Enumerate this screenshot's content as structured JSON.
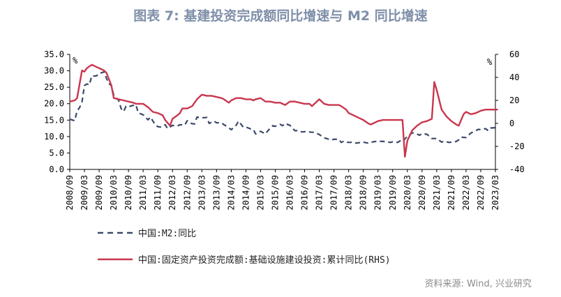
{
  "title": "图表 7:  基建投资完成额同比增速与 M2 同比增速",
  "source": "资料来源:  Wind, 兴业研究",
  "colors": {
    "m2": "#3b4a6b",
    "infra": "#c9364e",
    "title": "#7f8fa9",
    "axis": "#000000"
  },
  "chart_data": {
    "type": "line",
    "x_ticks": [
      "2008/09",
      "2009/03",
      "2009/09",
      "2010/03",
      "2010/09",
      "2011/03",
      "2011/09",
      "2012/03",
      "2012/09",
      "2013/03",
      "2013/09",
      "2014/03",
      "2014/09",
      "2015/03",
      "2015/09",
      "2016/03",
      "2016/09",
      "2017/03",
      "2017/09",
      "2018/03",
      "2018/09",
      "2019/03",
      "2019/09",
      "2020/03",
      "2020/09",
      "2021/03",
      "2021/09",
      "2022/03",
      "2022/09",
      "2023/03"
    ],
    "y_left": {
      "ticks": [
        "35.0",
        "30.0",
        "25.0",
        "20.0",
        "15.0",
        "10.0",
        "5.0",
        "0.0"
      ],
      "range": [
        0,
        35
      ],
      "unit": "%"
    },
    "y_right": {
      "ticks": [
        "60",
        "40",
        "20",
        "0",
        "-20",
        "-40"
      ],
      "range": [
        -40,
        60
      ],
      "unit": "%"
    },
    "series": [
      {
        "name": "中国:M2:同比",
        "axis": "left",
        "style": "dashed",
        "color": "#3b4a6b",
        "points": [
          [
            "2008/09",
            15.3
          ],
          [
            "2008/11",
            14.8
          ],
          [
            "2008/12",
            17.8
          ],
          [
            "2009/01",
            18.8
          ],
          [
            "2009/02",
            20.5
          ],
          [
            "2009/03",
            25.5
          ],
          [
            "2009/04",
            26.0
          ],
          [
            "2009/05",
            25.7
          ],
          [
            "2009/06",
            28.5
          ],
          [
            "2009/07",
            28.4
          ],
          [
            "2009/08",
            28.5
          ],
          [
            "2009/09",
            29.3
          ],
          [
            "2009/10",
            29.4
          ],
          [
            "2009/11",
            29.7
          ],
          [
            "2009/12",
            27.7
          ],
          [
            "2010/01",
            26.1
          ],
          [
            "2010/02",
            25.5
          ],
          [
            "2010/03",
            22.5
          ],
          [
            "2010/05",
            21.0
          ],
          [
            "2010/06",
            18.5
          ],
          [
            "2010/07",
            17.6
          ],
          [
            "2010/08",
            19.2
          ],
          [
            "2010/09",
            19.0
          ],
          [
            "2010/10",
            19.3
          ],
          [
            "2010/12",
            19.7
          ],
          [
            "2011/01",
            17.2
          ],
          [
            "2011/03",
            16.6
          ],
          [
            "2011/05",
            15.1
          ],
          [
            "2011/06",
            15.9
          ],
          [
            "2011/08",
            13.5
          ],
          [
            "2011/09",
            13.0
          ],
          [
            "2011/10",
            12.9
          ],
          [
            "2011/12",
            13.6
          ],
          [
            "2012/01",
            12.4
          ],
          [
            "2012/03",
            13.4
          ],
          [
            "2012/05",
            13.2
          ],
          [
            "2012/06",
            13.6
          ],
          [
            "2012/08",
            13.5
          ],
          [
            "2012/09",
            14.8
          ],
          [
            "2012/10",
            14.1
          ],
          [
            "2012/12",
            13.8
          ],
          [
            "2013/01",
            15.9
          ],
          [
            "2013/03",
            15.7
          ],
          [
            "2013/05",
            15.8
          ],
          [
            "2013/06",
            14.0
          ],
          [
            "2013/08",
            14.7
          ],
          [
            "2013/09",
            14.2
          ],
          [
            "2013/11",
            14.2
          ],
          [
            "2013/12",
            13.6
          ],
          [
            "2014/01",
            13.2
          ],
          [
            "2014/03",
            12.1
          ],
          [
            "2014/05",
            13.4
          ],
          [
            "2014/06",
            14.7
          ],
          [
            "2014/08",
            12.8
          ],
          [
            "2014/09",
            12.9
          ],
          [
            "2014/11",
            12.3
          ],
          [
            "2014/12",
            12.2
          ],
          [
            "2015/01",
            10.8
          ],
          [
            "2015/03",
            11.6
          ],
          [
            "2015/05",
            10.8
          ],
          [
            "2015/06",
            11.8
          ],
          [
            "2015/08",
            13.3
          ],
          [
            "2015/09",
            13.1
          ],
          [
            "2015/11",
            13.7
          ],
          [
            "2015/12",
            13.3
          ],
          [
            "2016/01",
            14.0
          ],
          [
            "2016/03",
            13.4
          ],
          [
            "2016/05",
            11.8
          ],
          [
            "2016/06",
            11.8
          ],
          [
            "2016/08",
            11.4
          ],
          [
            "2016/09",
            11.5
          ],
          [
            "2016/11",
            11.4
          ],
          [
            "2016/12",
            11.3
          ],
          [
            "2017/01",
            11.3
          ],
          [
            "2017/03",
            10.6
          ],
          [
            "2017/05",
            9.6
          ],
          [
            "2017/06",
            9.4
          ],
          [
            "2017/08",
            8.9
          ],
          [
            "2017/09",
            9.2
          ],
          [
            "2017/11",
            9.1
          ],
          [
            "2017/12",
            8.2
          ],
          [
            "2018/01",
            8.6
          ],
          [
            "2018/03",
            8.2
          ],
          [
            "2018/05",
            8.3
          ],
          [
            "2018/06",
            8.0
          ],
          [
            "2018/08",
            8.2
          ],
          [
            "2018/09",
            8.3
          ],
          [
            "2018/11",
            8.0
          ],
          [
            "2018/12",
            8.1
          ],
          [
            "2019/01",
            8.4
          ],
          [
            "2019/03",
            8.6
          ],
          [
            "2019/05",
            8.5
          ],
          [
            "2019/06",
            8.5
          ],
          [
            "2019/08",
            8.2
          ],
          [
            "2019/09",
            8.4
          ],
          [
            "2019/11",
            8.2
          ],
          [
            "2019/12",
            8.7
          ],
          [
            "2020/01",
            8.4
          ],
          [
            "2020/03",
            10.1
          ],
          [
            "2020/05",
            11.1
          ],
          [
            "2020/06",
            11.1
          ],
          [
            "2020/08",
            10.4
          ],
          [
            "2020/09",
            10.9
          ],
          [
            "2020/11",
            10.7
          ],
          [
            "2020/12",
            10.1
          ],
          [
            "2021/01",
            9.4
          ],
          [
            "2021/03",
            9.4
          ],
          [
            "2021/05",
            8.3
          ],
          [
            "2021/06",
            8.6
          ],
          [
            "2021/08",
            8.2
          ],
          [
            "2021/09",
            8.3
          ],
          [
            "2021/11",
            8.5
          ],
          [
            "2021/12",
            9.0
          ],
          [
            "2022/01",
            9.8
          ],
          [
            "2022/03",
            9.7
          ],
          [
            "2022/05",
            11.1
          ],
          [
            "2022/06",
            11.4
          ],
          [
            "2022/08",
            12.2
          ],
          [
            "2022/09",
            12.1
          ],
          [
            "2022/11",
            12.4
          ],
          [
            "2022/12",
            11.8
          ],
          [
            "2023/01",
            12.6
          ],
          [
            "2023/03",
            12.7
          ],
          [
            "2023/04",
            12.4
          ]
        ]
      },
      {
        "name": "中国:固定资产投资完成额:基础设施建设投资:累计同比(RHS)",
        "axis": "right",
        "style": "solid",
        "color": "#c9364e",
        "points": [
          [
            "2008/09",
            19
          ],
          [
            "2008/11",
            20
          ],
          [
            "2008/12",
            22
          ],
          [
            "2009/02",
            46
          ],
          [
            "2009/03",
            45
          ],
          [
            "2009/04",
            48
          ],
          [
            "2009/06",
            51
          ],
          [
            "2009/08",
            49
          ],
          [
            "2009/10",
            47
          ],
          [
            "2009/11",
            46
          ],
          [
            "2009/12",
            44
          ],
          [
            "2010/02",
            33
          ],
          [
            "2010/03",
            22
          ],
          [
            "2010/05",
            21
          ],
          [
            "2010/07",
            20
          ],
          [
            "2010/09",
            19
          ],
          [
            "2010/11",
            18
          ],
          [
            "2010/12",
            17
          ],
          [
            "2011/03",
            17
          ],
          [
            "2011/05",
            14
          ],
          [
            "2011/07",
            10
          ],
          [
            "2011/09",
            9
          ],
          [
            "2011/11",
            7
          ],
          [
            "2011/12",
            3
          ],
          [
            "2012/02",
            -2
          ],
          [
            "2012/03",
            4
          ],
          [
            "2012/05",
            7
          ],
          [
            "2012/06",
            9
          ],
          [
            "2012/07",
            13
          ],
          [
            "2012/09",
            13
          ],
          [
            "2012/11",
            15
          ],
          [
            "2013/01",
            21
          ],
          [
            "2013/03",
            25
          ],
          [
            "2013/05",
            24
          ],
          [
            "2013/07",
            24
          ],
          [
            "2013/09",
            23
          ],
          [
            "2013/11",
            22
          ],
          [
            "2013/12",
            21
          ],
          [
            "2014/02",
            18
          ],
          [
            "2014/03",
            20
          ],
          [
            "2014/05",
            22
          ],
          [
            "2014/07",
            22
          ],
          [
            "2014/09",
            21
          ],
          [
            "2014/11",
            21
          ],
          [
            "2014/12",
            20
          ],
          [
            "2015/01",
            21
          ],
          [
            "2015/03",
            22
          ],
          [
            "2015/05",
            19
          ],
          [
            "2015/07",
            19
          ],
          [
            "2015/09",
            18
          ],
          [
            "2015/11",
            18
          ],
          [
            "2015/12",
            17
          ],
          [
            "2016/01",
            16
          ],
          [
            "2016/03",
            19
          ],
          [
            "2016/05",
            19
          ],
          [
            "2016/07",
            18
          ],
          [
            "2016/09",
            17
          ],
          [
            "2016/11",
            17
          ],
          [
            "2016/12",
            15
          ],
          [
            "2017/01",
            17
          ],
          [
            "2017/03",
            21
          ],
          [
            "2017/05",
            17
          ],
          [
            "2017/07",
            16
          ],
          [
            "2017/09",
            16
          ],
          [
            "2017/11",
            16
          ],
          [
            "2017/12",
            15
          ],
          [
            "2018/02",
            12
          ],
          [
            "2018/03",
            9
          ],
          [
            "2018/05",
            7
          ],
          [
            "2018/07",
            5
          ],
          [
            "2018/09",
            3
          ],
          [
            "2018/11",
            0
          ],
          [
            "2018/12",
            -1
          ],
          [
            "2019/02",
            1
          ],
          [
            "2019/03",
            2
          ],
          [
            "2019/05",
            3
          ],
          [
            "2019/07",
            3
          ],
          [
            "2019/09",
            3
          ],
          [
            "2019/11",
            3
          ],
          [
            "2019/12",
            3
          ],
          [
            "2020/01",
            3
          ],
          [
            "2020/02",
            -29
          ],
          [
            "2020/03",
            -15
          ],
          [
            "2020/05",
            -6
          ],
          [
            "2020/07",
            -2
          ],
          [
            "2020/09",
            1
          ],
          [
            "2020/11",
            2
          ],
          [
            "2020/12",
            3
          ],
          [
            "2021/01",
            4
          ],
          [
            "2021/02",
            36
          ],
          [
            "2021/03",
            29
          ],
          [
            "2021/05",
            12
          ],
          [
            "2021/07",
            6
          ],
          [
            "2021/09",
            2
          ],
          [
            "2021/11",
            -1
          ],
          [
            "2021/12",
            -2
          ],
          [
            "2022/02",
            8
          ],
          [
            "2022/03",
            10
          ],
          [
            "2022/05",
            8
          ],
          [
            "2022/07",
            9
          ],
          [
            "2022/09",
            11
          ],
          [
            "2022/11",
            12
          ],
          [
            "2022/12",
            12
          ],
          [
            "2023/03",
            12
          ],
          [
            "2023/04",
            12
          ]
        ]
      }
    ],
    "legend": [
      {
        "label": "中国:M2:同比",
        "style": "dashed",
        "color": "#3b4a6b"
      },
      {
        "label": "中国:固定资产投资完成额:基础设施建设投资:累计同比(RHS)",
        "style": "solid",
        "color": "#c9364e"
      }
    ],
    "legend_position": "bottom-left",
    "grid": false
  }
}
